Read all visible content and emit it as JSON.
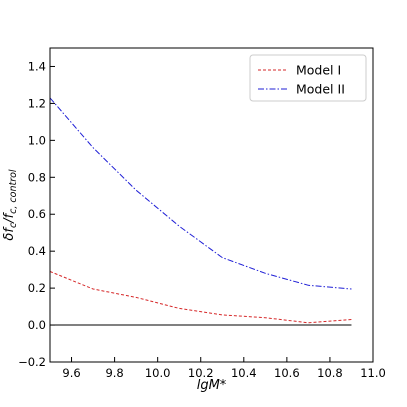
{
  "chart_data": {
    "type": "line",
    "title": "",
    "xlabel": "lgM*",
    "ylabel": "δf_c/f_c, control",
    "xlim": [
      9.5,
      11.0
    ],
    "ylim": [
      -0.2,
      1.5
    ],
    "xticks": [
      9.6,
      9.8,
      10.0,
      10.2,
      10.4,
      10.6,
      10.8,
      11.0
    ],
    "xtick_labels": [
      "9.6",
      "9.8",
      "10.0",
      "10.2",
      "10.4",
      "10.6",
      "10.8",
      "11.0"
    ],
    "yticks": [
      -0.2,
      0.0,
      0.2,
      0.4,
      0.6,
      0.8,
      1.0,
      1.2,
      1.4
    ],
    "ytick_labels": [
      "−0.2",
      "0.0",
      "0.2",
      "0.4",
      "0.6",
      "0.8",
      "1.0",
      "1.2",
      "1.4"
    ],
    "grid": false,
    "legend_position": "top-right",
    "reference_line": {
      "y": 0.0,
      "color": "#000000"
    },
    "series": [
      {
        "name": "Model I",
        "color": "#d62728",
        "dash": "dashed",
        "x": [
          9.5,
          9.7,
          9.9,
          10.1,
          10.3,
          10.5,
          10.7,
          10.9
        ],
        "y": [
          0.29,
          0.195,
          0.15,
          0.09,
          0.055,
          0.04,
          0.012,
          0.03
        ]
      },
      {
        "name": "Model II",
        "color": "#1f1fd6",
        "dash": "dashdot",
        "x": [
          9.5,
          9.7,
          9.9,
          10.1,
          10.3,
          10.5,
          10.7,
          10.9
        ],
        "y": [
          1.23,
          0.96,
          0.73,
          0.535,
          0.365,
          0.28,
          0.215,
          0.195
        ]
      }
    ]
  }
}
